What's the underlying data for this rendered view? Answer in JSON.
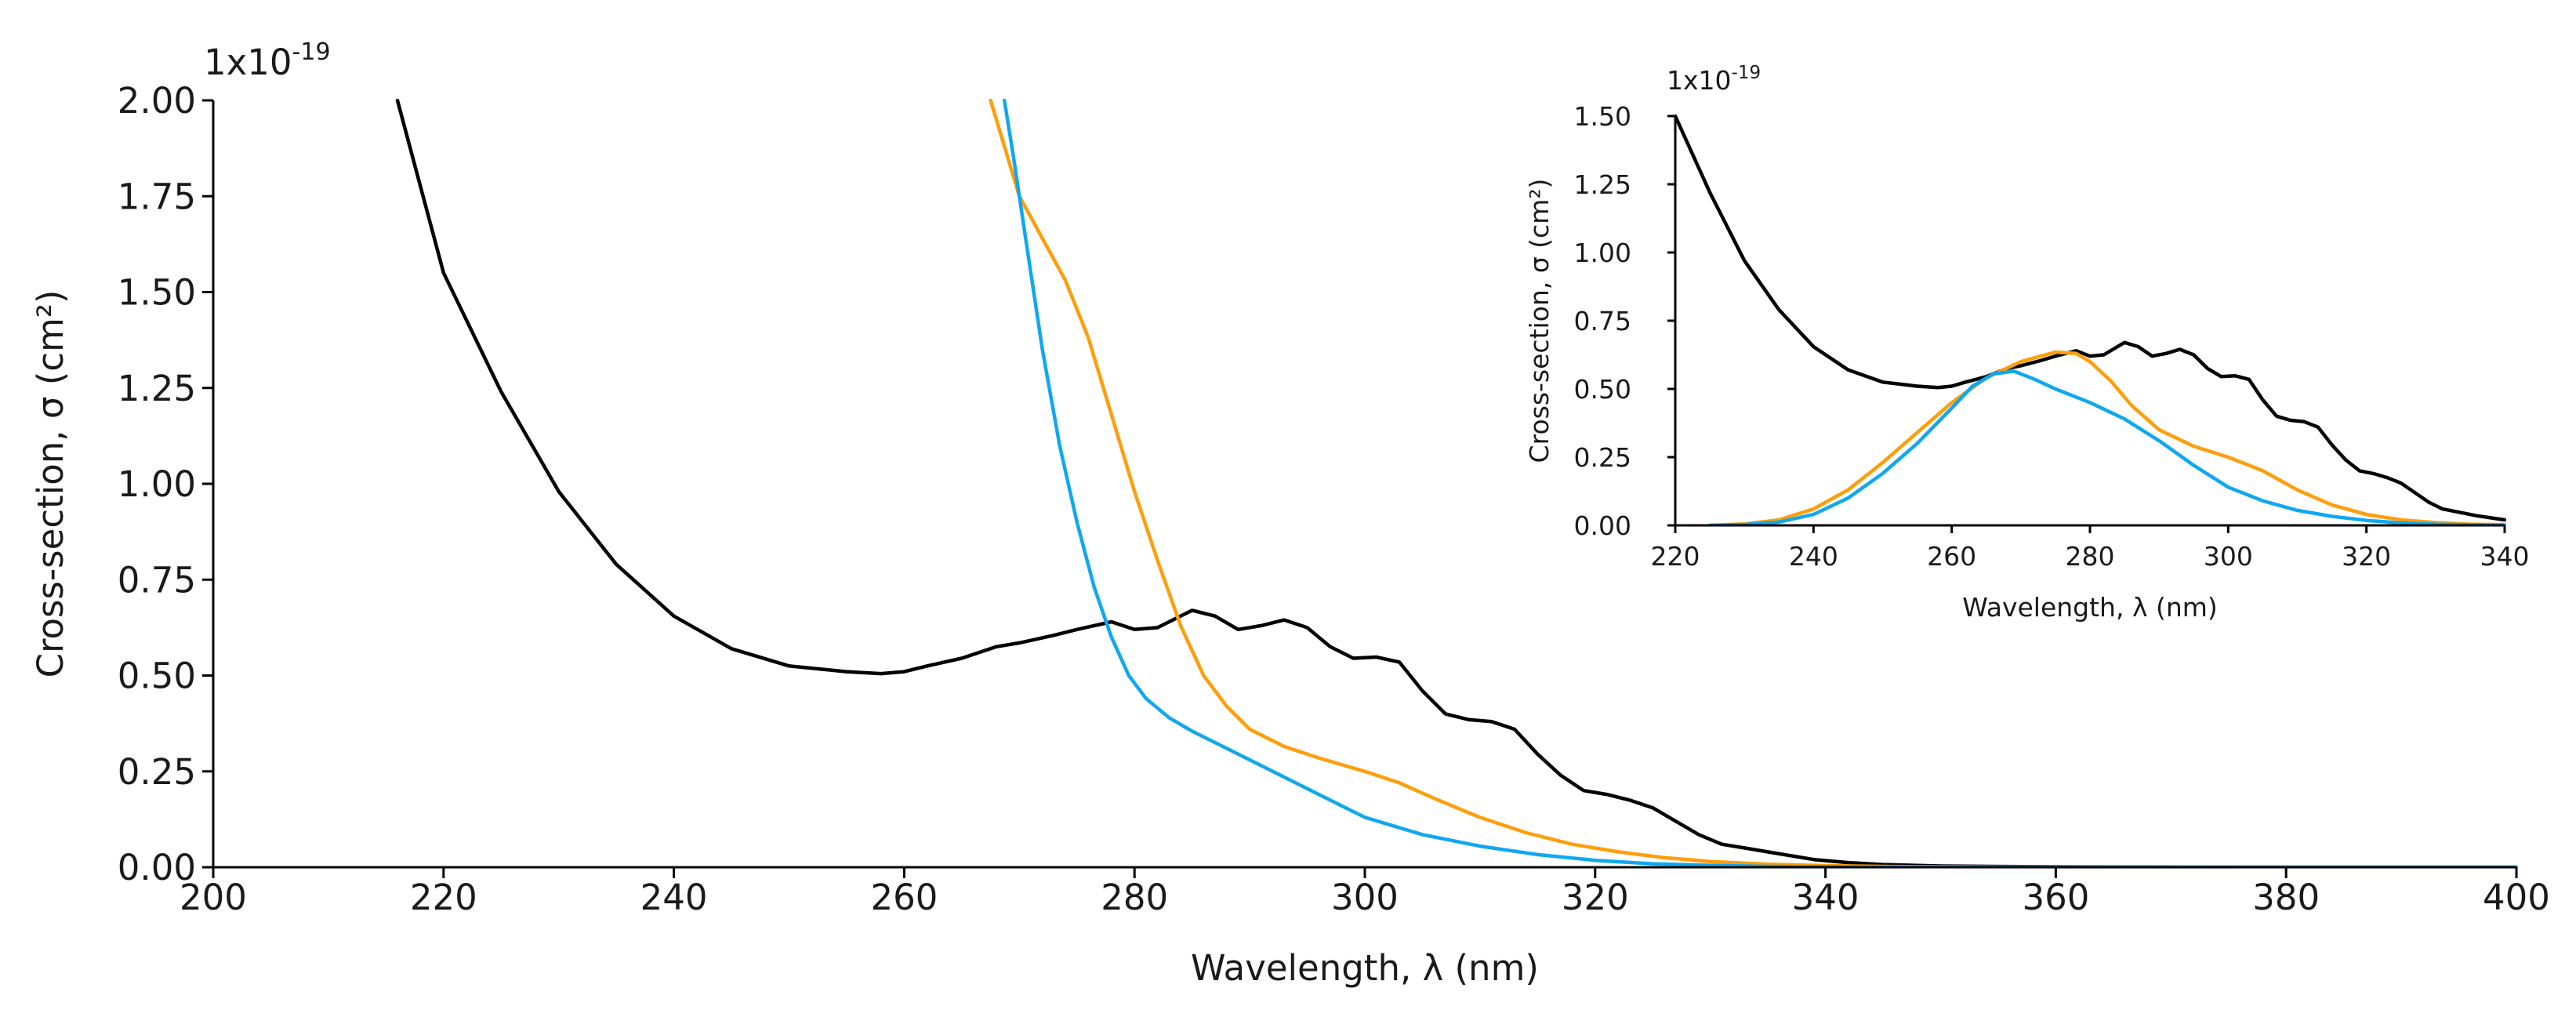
{
  "chart_data": [
    {
      "type": "line",
      "role": "main",
      "xlabel": "Wavelength, λ (nm)",
      "ylabel": "Cross-section, σ (cm²)",
      "multiplier_label": "1x10",
      "multiplier_exponent": "-19",
      "xlim": [
        200,
        400
      ],
      "ylim": [
        0,
        2.0
      ],
      "xticks": [
        200,
        220,
        240,
        260,
        280,
        300,
        320,
        340,
        360,
        380,
        400
      ],
      "xtick_labels": [
        "200",
        "220",
        "240",
        "260",
        "280",
        "300",
        "320",
        "340",
        "360",
        "380",
        "400"
      ],
      "yticks": [
        0,
        0.25,
        0.5,
        0.75,
        1.0,
        1.25,
        1.5,
        1.75,
        2.0
      ],
      "ytick_labels": [
        "0.00",
        "0.25",
        "0.50",
        "0.75",
        "1.00",
        "1.25",
        "1.50",
        "1.75",
        "2.00"
      ],
      "grid": false,
      "series": [
        {
          "name": "black",
          "color": "#000000",
          "x": [
            216,
            220,
            225,
            230,
            235,
            240,
            245,
            250,
            255,
            258,
            260,
            262,
            265,
            268,
            270,
            273,
            275,
            278,
            280,
            282,
            285,
            287,
            289,
            291,
            293,
            295,
            297,
            299,
            301,
            303,
            305,
            307,
            309,
            311,
            313,
            315,
            317,
            319,
            321,
            323,
            325,
            327,
            329,
            331,
            333,
            336,
            339,
            342,
            345,
            350,
            360,
            380,
            400
          ],
          "y": [
            2.0,
            1.55,
            1.24,
            0.98,
            0.79,
            0.655,
            0.57,
            0.525,
            0.51,
            0.505,
            0.51,
            0.525,
            0.545,
            0.575,
            0.585,
            0.605,
            0.62,
            0.64,
            0.62,
            0.625,
            0.67,
            0.655,
            0.62,
            0.63,
            0.645,
            0.625,
            0.575,
            0.545,
            0.548,
            0.535,
            0.46,
            0.4,
            0.385,
            0.38,
            0.36,
            0.295,
            0.24,
            0.2,
            0.19,
            0.175,
            0.155,
            0.12,
            0.085,
            0.06,
            0.05,
            0.035,
            0.02,
            0.012,
            0.007,
            0.003,
            0.001,
            0.0,
            0.0
          ]
        },
        {
          "name": "orange",
          "color": "#ff9e0b",
          "x": [
            267.5,
            268.5,
            270,
            272,
            274,
            276,
            278,
            280,
            282,
            284,
            286,
            288,
            290,
            293,
            296,
            300,
            303,
            306,
            310,
            314,
            318,
            322,
            326,
            330,
            335,
            340,
            345,
            350,
            360,
            380,
            400
          ],
          "y": [
            2.0,
            1.9,
            1.75,
            1.64,
            1.53,
            1.38,
            1.18,
            0.98,
            0.8,
            0.63,
            0.5,
            0.42,
            0.36,
            0.315,
            0.285,
            0.25,
            0.22,
            0.18,
            0.13,
            0.09,
            0.06,
            0.04,
            0.025,
            0.015,
            0.008,
            0.004,
            0.002,
            0.001,
            0.0,
            0.0,
            0.0
          ]
        },
        {
          "name": "blue",
          "color": "#0fa8f0",
          "x": [
            268.7,
            269.5,
            270.5,
            272,
            273.5,
            275,
            276.5,
            278,
            279.5,
            281,
            283,
            285,
            288,
            291,
            295,
            300,
            305,
            310,
            315,
            320,
            325,
            330,
            335,
            340,
            350,
            360,
            380,
            400
          ],
          "y": [
            2.0,
            1.85,
            1.65,
            1.35,
            1.1,
            0.9,
            0.73,
            0.6,
            0.5,
            0.44,
            0.39,
            0.355,
            0.31,
            0.265,
            0.205,
            0.13,
            0.085,
            0.055,
            0.033,
            0.018,
            0.009,
            0.005,
            0.002,
            0.001,
            0.0,
            0.0,
            0.0,
            0.0
          ]
        }
      ]
    },
    {
      "type": "line",
      "role": "inset",
      "xlabel": "Wavelength, λ (nm)",
      "ylabel": "Cross-section, σ (cm²)",
      "multiplier_label": "1x10",
      "multiplier_exponent": "-19",
      "xlim": [
        220,
        340
      ],
      "ylim": [
        0,
        1.5
      ],
      "xticks": [
        220,
        240,
        260,
        280,
        300,
        320,
        340
      ],
      "xtick_labels": [
        "220",
        "240",
        "260",
        "280",
        "300",
        "320",
        "340"
      ],
      "yticks": [
        0,
        0.25,
        0.5,
        0.75,
        1.0,
        1.25,
        1.5
      ],
      "ytick_labels": [
        "0.00",
        "0.25",
        "0.50",
        "0.75",
        "1.00",
        "1.25",
        "1.50"
      ],
      "grid": false,
      "series": [
        {
          "name": "black",
          "color": "#000000",
          "x": [
            220,
            225,
            230,
            235,
            240,
            245,
            250,
            255,
            258,
            260,
            262,
            265,
            268,
            270,
            273,
            275,
            278,
            280,
            282,
            285,
            287,
            289,
            291,
            293,
            295,
            297,
            299,
            301,
            303,
            305,
            307,
            309,
            311,
            313,
            315,
            317,
            319,
            321,
            323,
            325,
            327,
            329,
            331,
            333,
            336,
            340
          ],
          "y": [
            1.5,
            1.22,
            0.97,
            0.79,
            0.655,
            0.57,
            0.525,
            0.51,
            0.505,
            0.51,
            0.525,
            0.545,
            0.575,
            0.585,
            0.605,
            0.62,
            0.64,
            0.62,
            0.625,
            0.67,
            0.655,
            0.62,
            0.63,
            0.645,
            0.625,
            0.575,
            0.545,
            0.548,
            0.535,
            0.46,
            0.4,
            0.385,
            0.38,
            0.36,
            0.295,
            0.24,
            0.2,
            0.19,
            0.175,
            0.155,
            0.12,
            0.085,
            0.06,
            0.05,
            0.035,
            0.02
          ]
        },
        {
          "name": "orange",
          "color": "#ff9e0b",
          "x": [
            225,
            230,
            235,
            240,
            245,
            250,
            255,
            260,
            265,
            270,
            275,
            278,
            280,
            283,
            286,
            290,
            295,
            300,
            305,
            310,
            315,
            320,
            325,
            330,
            335,
            340
          ],
          "y": [
            0.0,
            0.005,
            0.02,
            0.06,
            0.13,
            0.23,
            0.34,
            0.45,
            0.54,
            0.6,
            0.635,
            0.63,
            0.6,
            0.53,
            0.44,
            0.35,
            0.29,
            0.25,
            0.2,
            0.13,
            0.075,
            0.04,
            0.02,
            0.01,
            0.004,
            0.002
          ]
        },
        {
          "name": "blue",
          "color": "#0fa8f0",
          "x": [
            225,
            230,
            235,
            240,
            245,
            250,
            255,
            260,
            263,
            266,
            269,
            272,
            275,
            280,
            285,
            290,
            295,
            300,
            305,
            310,
            315,
            320,
            325,
            330,
            335,
            340
          ],
          "y": [
            0.0,
            0.003,
            0.012,
            0.04,
            0.1,
            0.19,
            0.3,
            0.43,
            0.51,
            0.555,
            0.565,
            0.535,
            0.5,
            0.45,
            0.39,
            0.31,
            0.22,
            0.14,
            0.09,
            0.055,
            0.033,
            0.018,
            0.009,
            0.004,
            0.002,
            0.001
          ]
        }
      ]
    }
  ]
}
